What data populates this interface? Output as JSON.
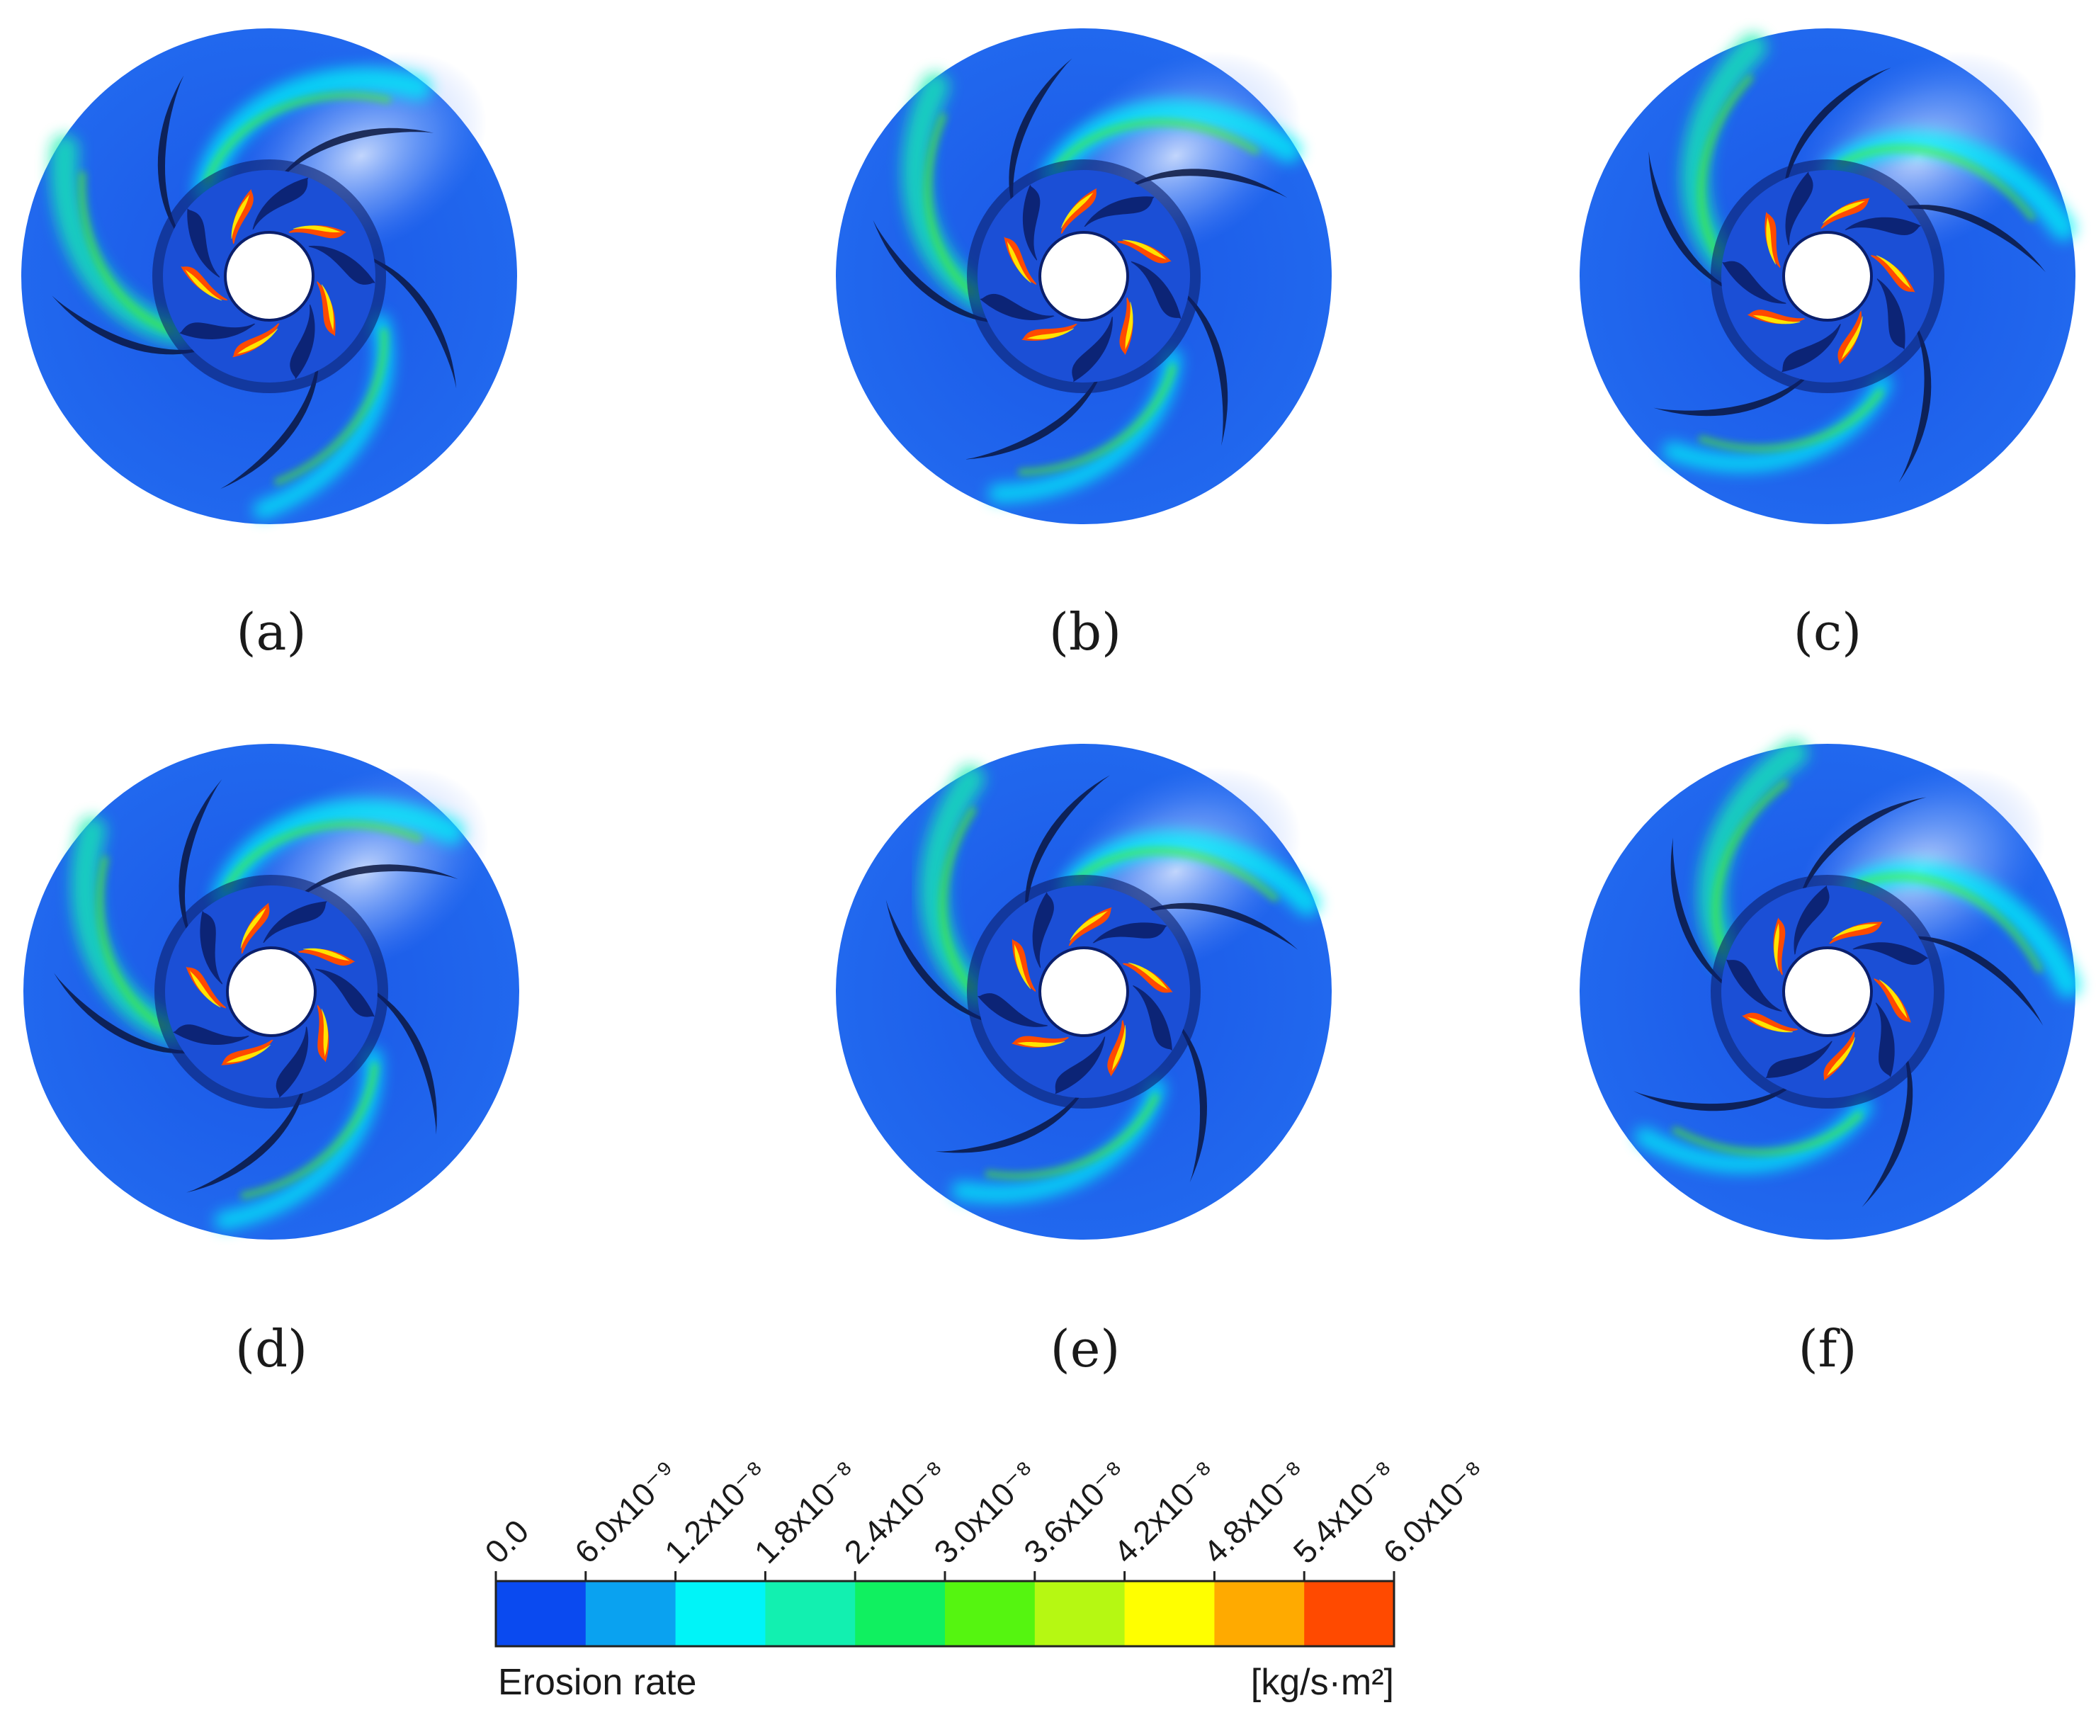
{
  "panels": [
    {
      "label": "(a)",
      "rotation": 0
    },
    {
      "label": "(b)",
      "rotation": 20
    },
    {
      "label": "(c)",
      "rotation": 40
    },
    {
      "label": "(d)",
      "rotation": 10
    },
    {
      "label": "(e)",
      "rotation": 30
    },
    {
      "label": "(f)",
      "rotation": 50
    }
  ],
  "colorbar": {
    "title": "Erosion rate",
    "unit": "[kg/s·m²]",
    "ticks": [
      "0.0",
      "6.0x10⁻⁹",
      "1.2x10⁻⁸",
      "1.8x10⁻⁸",
      "2.4x10⁻⁸",
      "3.0x10⁻⁸",
      "3.6x10⁻⁸",
      "4.2x10⁻⁸",
      "4.8x10⁻⁸",
      "5.4x10⁻⁸",
      "6.0x10⁻⁸"
    ],
    "colors": [
      "#0a4af0",
      "#0aa2f0",
      "#00f4f8",
      "#12f0b0",
      "#10f060",
      "#55f510",
      "#b6f812",
      "#ffff00",
      "#ffaa00",
      "#ff4a00"
    ]
  },
  "colors": {
    "impeller_base": "#1f5fe8",
    "hub_dark": "#0b1f6b",
    "blade_gap": "#0a1640"
  }
}
